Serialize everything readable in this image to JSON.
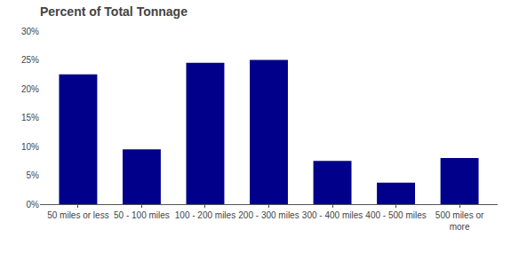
{
  "chart_data": {
    "type": "bar",
    "title": "Percent of Total Tonnage",
    "categories": [
      "50 miles or less",
      "50 - 100 miles",
      "100 - 200 miles",
      "200 - 300 miles",
      "300 - 400 miles",
      "400 - 500 miles",
      "500 miles or\nmore"
    ],
    "values": [
      22.5,
      9.5,
      24.5,
      25.0,
      7.5,
      3.75,
      8.0
    ],
    "color": "#00008B",
    "ylim": [
      0,
      30
    ],
    "yticks": [
      {
        "value": 0,
        "label": "0%"
      },
      {
        "value": 5,
        "label": "5%"
      },
      {
        "value": 10,
        "label": "10%"
      },
      {
        "value": 15,
        "label": "15%"
      },
      {
        "value": 20,
        "label": "20%"
      },
      {
        "value": 25,
        "label": "25%"
      },
      {
        "value": 30,
        "label": "30%"
      }
    ],
    "grid": false
  }
}
